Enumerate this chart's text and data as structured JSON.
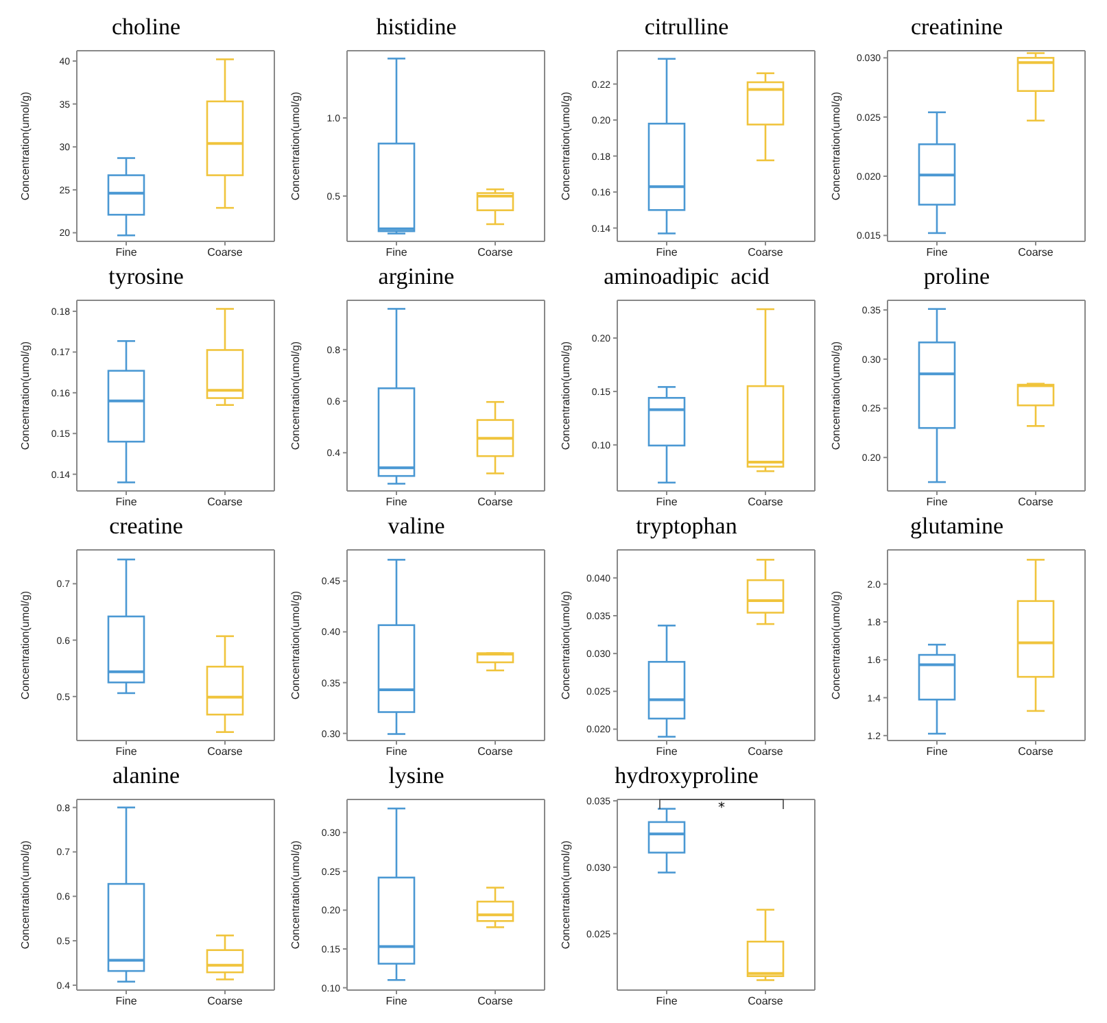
{
  "chart_data": [
    {
      "type": "box",
      "title": "choline",
      "ylabel": "Concentration(umol/g)",
      "categories": [
        "Fine",
        "Coarse"
      ],
      "colors": [
        "#4a98d3",
        "#f0c43c"
      ],
      "ylim": [
        19,
        41.2
      ],
      "yticks": [
        20,
        25,
        30,
        35,
        40
      ],
      "boxes": [
        {
          "low": 19.7,
          "q1": 22.1,
          "median": 24.6,
          "q3": 26.7,
          "high": 28.7
        },
        {
          "low": 22.9,
          "q1": 26.7,
          "median": 30.4,
          "q3": 35.3,
          "high": 40.2
        }
      ]
    },
    {
      "type": "box",
      "title": "histidine",
      "ylabel": "Concentration(umol/g)",
      "categories": [
        "Fine",
        "Coarse"
      ],
      "colors": [
        "#4a98d3",
        "#f0c43c"
      ],
      "ylim": [
        0.21,
        1.43
      ],
      "yticks": [
        0.5,
        {
          "value": 1,
          "label": "1.0"
        }
      ],
      "boxes": [
        {
          "low": 0.26,
          "q1": 0.275,
          "median": 0.29,
          "q3": 0.836,
          "high": 1.38
        },
        {
          "low": 0.32,
          "q1": 0.409,
          "median": 0.5,
          "q3": 0.519,
          "high": 0.543
        }
      ]
    },
    {
      "type": "box",
      "title": "citrulline",
      "ylabel": "Concentration(umol/g)",
      "categories": [
        "Fine",
        "Coarse"
      ],
      "colors": [
        "#4a98d3",
        "#f0c43c"
      ],
      "ylim": [
        0.1326,
        0.2385
      ],
      "yticks": [
        0.14,
        0.16,
        0.18,
        {
          "value": 0.2,
          "label": "0.20"
        },
        0.22
      ],
      "boxes": [
        {
          "low": 0.137,
          "q1": 0.15,
          "median": 0.163,
          "q3": 0.198,
          "high": 0.234
        },
        {
          "low": 0.1776,
          "q1": 0.1975,
          "median": 0.217,
          "q3": 0.221,
          "high": 0.226
        }
      ]
    },
    {
      "type": "box",
      "title": "creatinine",
      "ylabel": "Concentration(umol/g)",
      "categories": [
        "Fine",
        "Coarse"
      ],
      "colors": [
        "#4a98d3",
        "#f0c43c"
      ],
      "ylim": [
        0.0145,
        0.0306
      ],
      "yticks": [
        0.015,
        {
          "value": 0.02,
          "label": "0.020"
        },
        0.025,
        {
          "value": 0.03,
          "label": "0.030"
        }
      ],
      "boxes": [
        {
          "low": 0.0152,
          "q1": 0.0176,
          "median": 0.0201,
          "q3": 0.0227,
          "high": 0.0254
        },
        {
          "low": 0.0247,
          "q1": 0.0272,
          "median": 0.0296,
          "q3": 0.03,
          "high": 0.0304
        }
      ]
    },
    {
      "type": "box",
      "title": "tyrosine",
      "ylabel": "Concentration(umol/g)",
      "categories": [
        "Fine",
        "Coarse"
      ],
      "colors": [
        "#4a98d3",
        "#f0c43c"
      ],
      "ylim": [
        0.1359,
        0.1827
      ],
      "yticks": [
        0.14,
        0.15,
        0.16,
        0.17,
        0.18
      ],
      "boxes": [
        {
          "low": 0.138,
          "q1": 0.148,
          "median": 0.158,
          "q3": 0.1654,
          "high": 0.1727
        },
        {
          "low": 0.157,
          "q1": 0.1587,
          "median": 0.1606,
          "q3": 0.1705,
          "high": 0.1806
        }
      ]
    },
    {
      "type": "box",
      "title": "arginine",
      "ylabel": "Concentration(umol/g)",
      "categories": [
        "Fine",
        "Coarse"
      ],
      "colors": [
        "#4a98d3",
        "#f0c43c"
      ],
      "ylim": [
        0.252,
        0.991
      ],
      "yticks": [
        0.4,
        0.6,
        0.8
      ],
      "boxes": [
        {
          "low": 0.28,
          "q1": 0.31,
          "median": 0.342,
          "q3": 0.65,
          "high": 0.958
        },
        {
          "low": 0.32,
          "q1": 0.387,
          "median": 0.456,
          "q3": 0.527,
          "high": 0.597
        }
      ]
    },
    {
      "type": "box",
      "title": "aminoadipic  acid",
      "ylabel": "Concentration(umol/g)",
      "categories": [
        "Fine",
        "Coarse"
      ],
      "colors": [
        "#4a98d3",
        "#f0c43c"
      ],
      "ylim": [
        0.0569,
        0.2353
      ],
      "yticks": [
        {
          "value": 0.1,
          "label": "0.10"
        },
        0.15,
        {
          "value": 0.2,
          "label": "0.20"
        }
      ],
      "boxes": [
        {
          "low": 0.0647,
          "q1": 0.0994,
          "median": 0.133,
          "q3": 0.144,
          "high": 0.1542
        },
        {
          "low": 0.0754,
          "q1": 0.0796,
          "median": 0.0838,
          "q3": 0.155,
          "high": 0.227
        }
      ]
    },
    {
      "type": "box",
      "title": "proline",
      "ylabel": "Concentration(umol/g)",
      "categories": [
        "Fine",
        "Coarse"
      ],
      "colors": [
        "#4a98d3",
        "#f0c43c"
      ],
      "ylim": [
        0.166,
        0.3598
      ],
      "yticks": [
        {
          "value": 0.2,
          "label": "0.20"
        },
        0.25,
        {
          "value": 0.3,
          "label": "0.30"
        },
        0.35
      ],
      "boxes": [
        {
          "low": 0.175,
          "q1": 0.23,
          "median": 0.285,
          "q3": 0.317,
          "high": 0.351
        },
        {
          "low": 0.232,
          "q1": 0.253,
          "median": 0.273,
          "q3": 0.274,
          "high": 0.275
        }
      ]
    },
    {
      "type": "box",
      "title": "creatine",
      "ylabel": "Concentration(umol/g)",
      "categories": [
        "Fine",
        "Coarse"
      ],
      "colors": [
        "#4a98d3",
        "#f0c43c"
      ],
      "ylim": [
        0.422,
        0.76
      ],
      "yticks": [
        0.5,
        0.6,
        0.7
      ],
      "boxes": [
        {
          "low": 0.506,
          "q1": 0.525,
          "median": 0.544,
          "q3": 0.642,
          "high": 0.743
        },
        {
          "low": 0.437,
          "q1": 0.468,
          "median": 0.499,
          "q3": 0.553,
          "high": 0.607
        }
      ]
    },
    {
      "type": "box",
      "title": "valine",
      "ylabel": "Concentration(umol/g)",
      "categories": [
        "Fine",
        "Coarse"
      ],
      "colors": [
        "#4a98d3",
        "#f0c43c"
      ],
      "ylim": [
        0.293,
        0.4807
      ],
      "yticks": [
        {
          "value": 0.3,
          "label": "0.30"
        },
        0.35,
        {
          "value": 0.4,
          "label": "0.40"
        },
        0.45
      ],
      "boxes": [
        {
          "low": 0.2994,
          "q1": 0.321,
          "median": 0.343,
          "q3": 0.4066,
          "high": 0.471
        },
        {
          "low": 0.362,
          "q1": 0.37,
          "median": 0.378,
          "q3": 0.379,
          "high": 0.379
        }
      ]
    },
    {
      "type": "box",
      "title": "tryptophan",
      "ylabel": "Concentration(umol/g)",
      "categories": [
        "Fine",
        "Coarse"
      ],
      "colors": [
        "#4a98d3",
        "#f0c43c"
      ],
      "ylim": [
        0.0185,
        0.0437
      ],
      "yticks": [
        {
          "value": 0.02,
          "label": "0.020"
        },
        0.025,
        {
          "value": 0.03,
          "label": "0.030"
        },
        0.035,
        {
          "value": 0.04,
          "label": "0.040"
        }
      ],
      "boxes": [
        {
          "low": 0.019,
          "q1": 0.0214,
          "median": 0.0239,
          "q3": 0.0289,
          "high": 0.0337
        },
        {
          "low": 0.0339,
          "q1": 0.0354,
          "median": 0.037,
          "q3": 0.0397,
          "high": 0.0424
        }
      ]
    },
    {
      "type": "box",
      "title": "glutamine",
      "ylabel": "Concentration(umol/g)",
      "categories": [
        "Fine",
        "Coarse"
      ],
      "colors": [
        "#4a98d3",
        "#f0c43c"
      ],
      "ylim": [
        1.174,
        2.18
      ],
      "yticks": [
        1.2,
        1.4,
        1.6,
        1.8,
        {
          "value": 2,
          "label": "2.0"
        }
      ],
      "boxes": [
        {
          "low": 1.21,
          "q1": 1.39,
          "median": 1.574,
          "q3": 1.626,
          "high": 1.68
        },
        {
          "low": 1.33,
          "q1": 1.51,
          "median": 1.69,
          "q3": 1.91,
          "high": 2.128
        }
      ]
    },
    {
      "type": "box",
      "title": "alanine",
      "ylabel": "Concentration(umol/g)",
      "categories": [
        "Fine",
        "Coarse"
      ],
      "colors": [
        "#4a98d3",
        "#f0c43c"
      ],
      "ylim": [
        0.389,
        0.818
      ],
      "yticks": [
        0.4,
        0.5,
        0.6,
        0.7,
        0.8
      ],
      "boxes": [
        {
          "low": 0.408,
          "q1": 0.432,
          "median": 0.456,
          "q3": 0.628,
          "high": 0.8
        },
        {
          "low": 0.413,
          "q1": 0.429,
          "median": 0.445,
          "q3": 0.479,
          "high": 0.512
        }
      ]
    },
    {
      "type": "box",
      "title": "lysine",
      "ylabel": "Concentration(umol/g)",
      "categories": [
        "Fine",
        "Coarse"
      ],
      "colors": [
        "#4a98d3",
        "#f0c43c"
      ],
      "ylim": [
        0.097,
        0.3426
      ],
      "yticks": [
        {
          "value": 0.1,
          "label": "0.10"
        },
        0.15,
        {
          "value": 0.2,
          "label": "0.20"
        },
        0.25,
        {
          "value": 0.3,
          "label": "0.30"
        }
      ],
      "boxes": [
        {
          "low": 0.11,
          "q1": 0.131,
          "median": 0.153,
          "q3": 0.242,
          "high": 0.331
        },
        {
          "low": 0.178,
          "q1": 0.186,
          "median": 0.194,
          "q3": 0.211,
          "high": 0.229
        }
      ]
    },
    {
      "type": "box",
      "title": "hydroxyproline",
      "ylabel": "Concentration(umol/g)",
      "categories": [
        "Fine",
        "Coarse"
      ],
      "colors": [
        "#4a98d3",
        "#f0c43c"
      ],
      "ylim": [
        0.02075,
        0.0351
      ],
      "yticks": [
        0.025,
        {
          "value": 0.03,
          "label": "0.030"
        },
        0.035
      ],
      "annotations": [
        "*"
      ],
      "boxes": [
        {
          "low": 0.0296,
          "q1": 0.0311,
          "median": 0.0325,
          "q3": 0.0334,
          "high": 0.0344
        },
        {
          "low": 0.0215,
          "q1": 0.0218,
          "median": 0.022,
          "q3": 0.0244,
          "high": 0.0268
        }
      ]
    }
  ]
}
